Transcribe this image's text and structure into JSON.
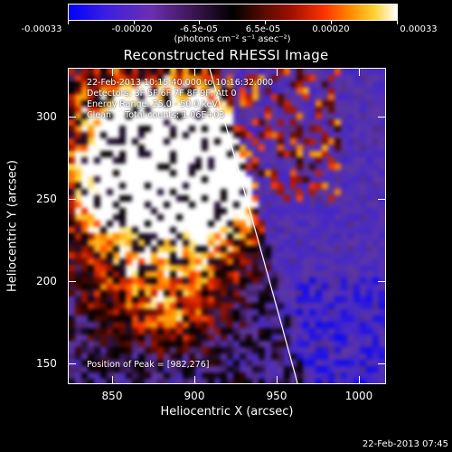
{
  "colorbar": {
    "tick_labels": [
      "-0.00033",
      "-0.00020",
      "-6.5e-05",
      "6.5e-05",
      "0.00020",
      "0.00033"
    ],
    "units": "(photons cm⁻² s⁻¹ asec⁻²)"
  },
  "title": "Reconstructed RHESSI Image",
  "info": {
    "line1": "22-Feb-2013 10:15:40.000 to 10:16:32.000",
    "line2": "Detectors: 3F 5F 6F 7F 8F 9F, Att 0",
    "line3": "Energy Range: 25.0 - 50.0 keV",
    "line4": "Clean     Total counts: 1.06E+03",
    "peak": "Position of Peak = [982,276]"
  },
  "axes": {
    "xlabel": "Heliocentric X (arcsec)",
    "ylabel": "Heliocentric Y (arcsec)",
    "xticks": [
      "850",
      "900",
      "950",
      "1000"
    ],
    "yticks": [
      "150",
      "200",
      "250",
      "300"
    ],
    "xrange": [
      823,
      1017
    ],
    "yrange": [
      137,
      329
    ]
  },
  "timestamp": "22-Feb-2013 07:45",
  "colors": {
    "limb": "#ffffff",
    "axes": "#ffffff",
    "background": "#000000"
  }
}
